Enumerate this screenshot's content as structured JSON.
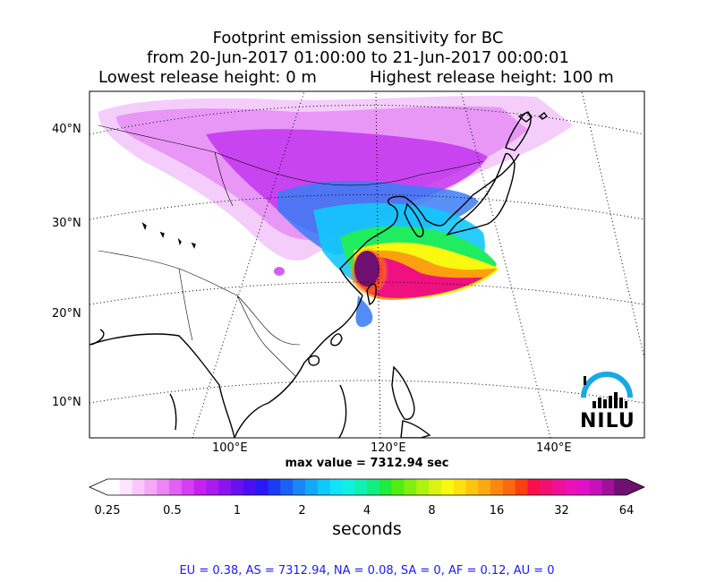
{
  "title": {
    "line1": "Footprint emission sensitivity for BC",
    "line2": "from 20-Jun-2017 01:00:00 to 21-Jun-2017 00:00:01",
    "line3_left": "Lowest release height: 0 m",
    "line3_right": "Highest release height: 100 m"
  },
  "axes": {
    "lat_ticks": [
      "40°N",
      "30°N",
      "20°N",
      "10°N"
    ],
    "lon_ticks": [
      "100°E",
      "120°E",
      "140°E"
    ]
  },
  "max_value_text": "max value = 7312.94 sec",
  "colorbar": {
    "ticks": [
      "0.25",
      "0.5",
      "1",
      "2",
      "4",
      "8",
      "16",
      "32",
      "64"
    ],
    "label": "seconds",
    "colors": [
      "#ffffff",
      "#fde5ff",
      "#f9c8fb",
      "#f3a8f8",
      "#ec85f6",
      "#e360f4",
      "#d63ff1",
      "#c423ef",
      "#a91aee",
      "#8a14ee",
      "#6a10ee",
      "#4a10f0",
      "#2a18f2",
      "#1a3cf4",
      "#1a60f6",
      "#1a85f8",
      "#14a8fa",
      "#10c8fc",
      "#12e2fc",
      "#10f0e0",
      "#10f0b0",
      "#10ee80",
      "#20ec40",
      "#50ee10",
      "#80f010",
      "#b0f210",
      "#d8f410",
      "#f8f810",
      "#fce010",
      "#fcc410",
      "#fca810",
      "#fc8810",
      "#fc6810",
      "#fc4010",
      "#f8104a",
      "#f01070",
      "#f01098",
      "#ec10b8",
      "#e010c8",
      "#c810b8",
      "#a0109a",
      "#701070"
    ],
    "scale": "log"
  },
  "footer": "EU = 0.38,  AS = 7312.94,  NA = 0.08,  SA = 0,  AF = 0.12,  AU = 0",
  "logo": {
    "text": "NILU",
    "arc_color": "#18a8e8"
  },
  "chart_data": {
    "type": "heatmap",
    "title": "Footprint emission sensitivity for BC",
    "subtitle": "from 20-Jun-2017 01:00:00 to 21-Jun-2017 00:00:01",
    "max_value": 7312.94,
    "units": "seconds",
    "colorbar_range": [
      0.25,
      64
    ],
    "colorbar_scale": "log",
    "latitude_ticks": [
      40,
      30,
      20,
      10
    ],
    "longitude_ticks": [
      100,
      120,
      140
    ],
    "region_totals": [
      {
        "name": "EU",
        "value": 0.38
      },
      {
        "name": "AS",
        "value": 7312.94
      },
      {
        "name": "NA",
        "value": 0.08
      },
      {
        "name": "SA",
        "value": 0
      },
      {
        "name": "AF",
        "value": 0.12
      },
      {
        "name": "AU",
        "value": 0
      }
    ]
  }
}
